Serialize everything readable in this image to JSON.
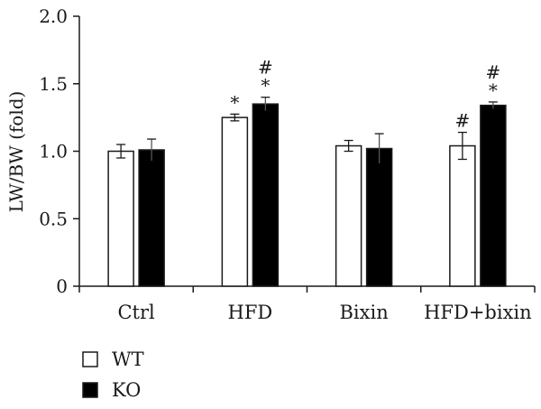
{
  "chart_data": {
    "type": "bar",
    "ylabel": "LW/BW (fold)",
    "xlabel": "",
    "title": "",
    "ylim": [
      0,
      2.0
    ],
    "yticks": [
      "0",
      "0.5",
      "1.0",
      "1.5",
      "2.0"
    ],
    "categories": [
      "Ctrl",
      "HFD",
      "Bixin",
      "HFD+bixin"
    ],
    "series": [
      {
        "name": "WT",
        "fill": "#ffffff",
        "values": [
          1.0,
          1.25,
          1.04,
          1.04
        ],
        "errors": [
          0.05,
          0.025,
          0.04,
          0.1
        ]
      },
      {
        "name": "KO",
        "fill": "#000000",
        "values": [
          1.01,
          1.35,
          1.02,
          1.34
        ],
        "errors": [
          0.08,
          0.05,
          0.11,
          0.025
        ]
      }
    ],
    "annotations": [
      {
        "category": 1,
        "series": 0,
        "marks": [
          "*"
        ]
      },
      {
        "category": 1,
        "series": 1,
        "marks": [
          "#",
          "*"
        ]
      },
      {
        "category": 3,
        "series": 0,
        "marks": [
          "#"
        ]
      },
      {
        "category": 3,
        "series": 1,
        "marks": [
          "#",
          "*"
        ]
      }
    ],
    "legend": "bottom-left"
  }
}
